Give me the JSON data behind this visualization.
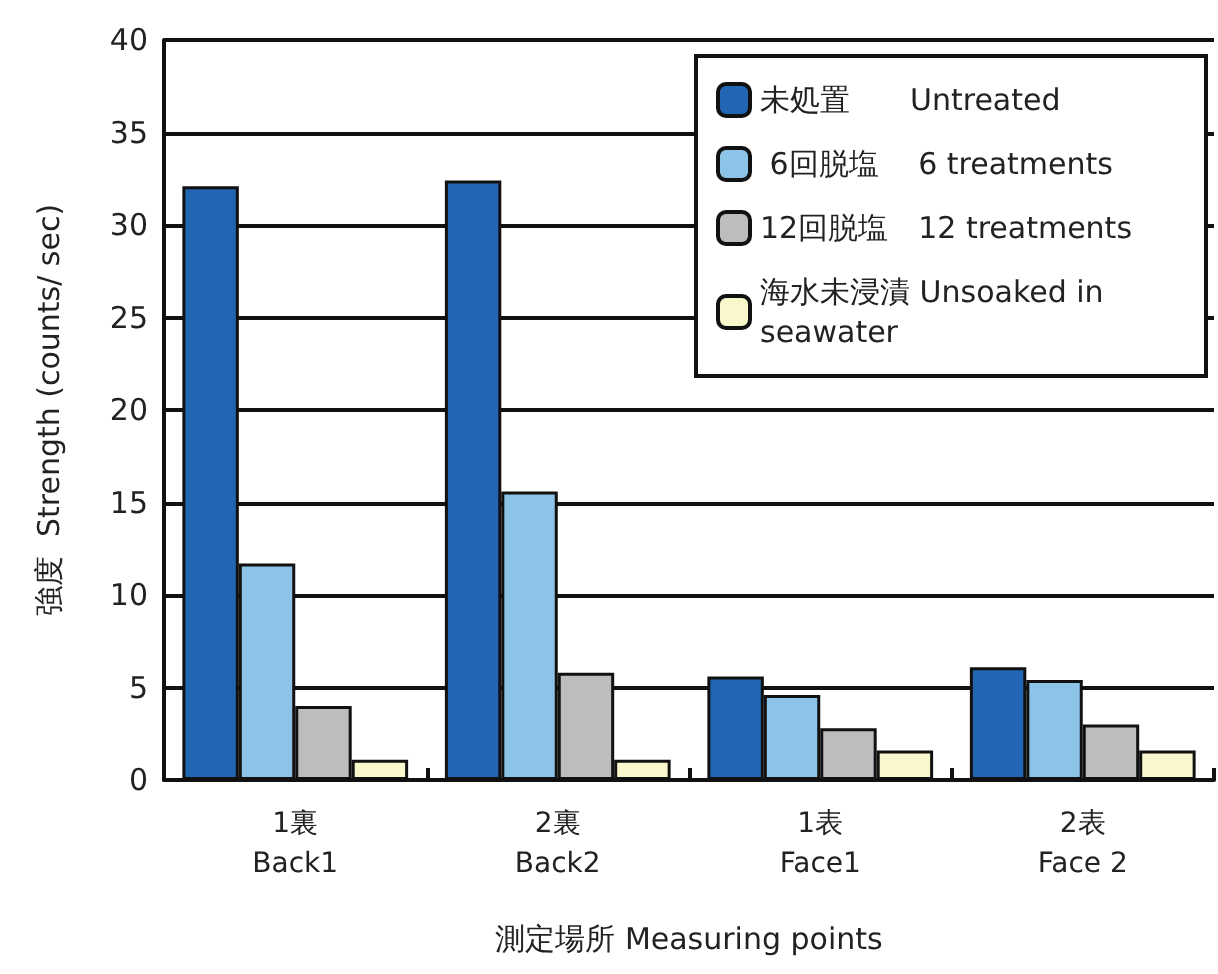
{
  "chart_data": {
    "type": "bar",
    "xlabel": "測定場所 Measuring points",
    "ylabel": "強度  Strength (counts/ sec)",
    "categories": [
      "1裏\nBack1",
      "2裏\nBack2",
      "1表\nFace1",
      "2表\nFace 2"
    ],
    "series": [
      {
        "name": "未処置　　Untreated",
        "color": "#2266b3",
        "values": [
          32.1,
          32.4,
          5.6,
          6.1
        ]
      },
      {
        "name": " 6回脱塩　 6 treatments",
        "color": "#8ec3e8",
        "values": [
          11.7,
          15.6,
          4.6,
          5.4
        ]
      },
      {
        "name": "12回脱塩　12 treatments",
        "color": "#bdbdbf",
        "values": [
          4.0,
          5.8,
          2.8,
          3.0
        ]
      },
      {
        "name": "海水未浸漬 Unsoaked in seawater",
        "color": "#f8f8cc",
        "values": [
          1.1,
          1.1,
          1.6,
          1.6
        ]
      }
    ],
    "ylim": [
      0,
      40
    ],
    "yticks": [
      0,
      5,
      10,
      15,
      20,
      25,
      30,
      35,
      40
    ],
    "grid": "y",
    "legend": "top right"
  }
}
